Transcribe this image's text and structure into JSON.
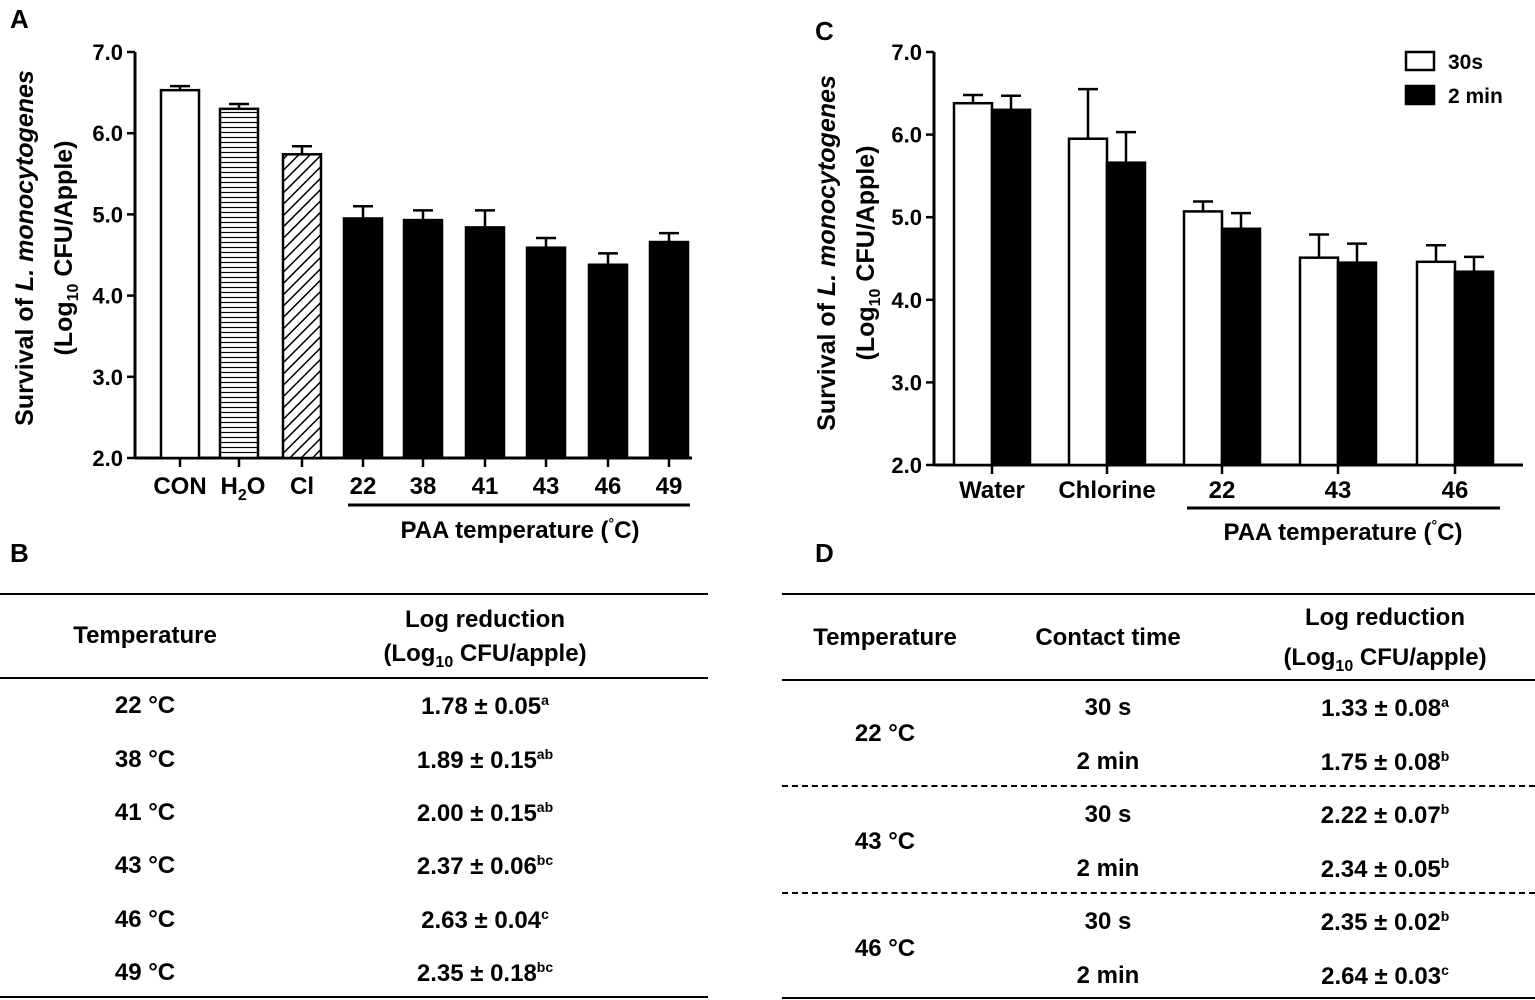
{
  "panel_labels": {
    "a": "A",
    "b": "B",
    "c": "C",
    "d": "D"
  },
  "chart_data": [
    {
      "type": "bar",
      "panel": "A",
      "ylabel_line1_pre": "Survival of ",
      "ylabel_line1_italic": "L. monocytogenes",
      "ylabel_line2_pre": "(Log",
      "ylabel_line2_sub": "10",
      "ylabel_line2_post": " CFU/Apple)",
      "ylim": [
        2.0,
        7.0
      ],
      "yticks": [
        "2.0",
        "3.0",
        "4.0",
        "5.0",
        "6.0",
        "7.0"
      ],
      "categories": [
        "CON",
        "H2O",
        "Cl",
        "22",
        "38",
        "41",
        "43",
        "46",
        "49"
      ],
      "category_display": {
        "h2o_pre": "H",
        "h2o_sub": "2",
        "h2o_post": "O"
      },
      "values": [
        6.53,
        6.3,
        5.74,
        4.95,
        4.93,
        4.84,
        4.59,
        4.38,
        4.66
      ],
      "errors": [
        0.05,
        0.06,
        0.1,
        0.15,
        0.12,
        0.21,
        0.12,
        0.14,
        0.11
      ],
      "fills": [
        "white",
        "hstripe",
        "diag",
        "black",
        "black",
        "black",
        "black",
        "black",
        "black"
      ],
      "group_label_pre": "PAA temperature (",
      "group_label_deg": "°",
      "group_label_post": "C)"
    },
    {
      "type": "bar",
      "panel": "C",
      "ylabel_line1_pre": "Survival of ",
      "ylabel_line1_italic": "L. monocytogenes",
      "ylabel_line2_pre": "(Log",
      "ylabel_line2_sub": "10",
      "ylabel_line2_post": " CFU/Apple)",
      "ylim": [
        2.0,
        7.0
      ],
      "yticks": [
        "2.0",
        "3.0",
        "4.0",
        "5.0",
        "6.0",
        "7.0"
      ],
      "categories": [
        "Water",
        "Chlorine",
        "22",
        "43",
        "46"
      ],
      "series": [
        {
          "name": "30s",
          "color": "#ffffff",
          "values": [
            6.38,
            5.95,
            5.07,
            4.51,
            4.46
          ],
          "errors": [
            0.1,
            0.6,
            0.12,
            0.28,
            0.2
          ]
        },
        {
          "name": "2 min",
          "color": "#000000",
          "values": [
            6.3,
            5.66,
            4.86,
            4.45,
            4.34
          ],
          "errors": [
            0.17,
            0.37,
            0.19,
            0.23,
            0.18
          ]
        }
      ],
      "group_label_pre": "PAA temperature (",
      "group_label_deg": "°",
      "group_label_post": "C)"
    }
  ],
  "table_b": {
    "header_temp": "Temperature",
    "header_log_line1": "Log reduction",
    "header_log_line2_pre": "(Log",
    "header_log_line2_sub": "10",
    "header_log_line2_post": " CFU/apple)",
    "rows": [
      {
        "temp": "22 °C",
        "value": "1.78 ± 0.05",
        "sup": "a"
      },
      {
        "temp": "38 °C",
        "value": "1.89 ± 0.15",
        "sup": "ab"
      },
      {
        "temp": "41 °C",
        "value": "2.00 ± 0.15",
        "sup": "ab"
      },
      {
        "temp": "43 °C",
        "value": "2.37 ± 0.06",
        "sup": "bc"
      },
      {
        "temp": "46 °C",
        "value": "2.63 ± 0.04",
        "sup": "c"
      },
      {
        "temp": "49 °C",
        "value": "2.35 ± 0.18",
        "sup": "bc"
      }
    ]
  },
  "table_d": {
    "header_temp": "Temperature",
    "header_time": "Contact time",
    "header_log_line1": "Log reduction",
    "header_log_line2_pre": "(Log",
    "header_log_line2_sub": "10",
    "header_log_line2_post": " CFU/apple)",
    "groups": [
      {
        "temp": "22 °C",
        "rows": [
          {
            "time": "30 s",
            "value": "1.33 ± 0.08",
            "sup": "a"
          },
          {
            "time": "2 min",
            "value": "1.75 ± 0.08",
            "sup": "b"
          }
        ]
      },
      {
        "temp": "43 °C",
        "rows": [
          {
            "time": "30 s",
            "value": "2.22 ± 0.07",
            "sup": "b"
          },
          {
            "time": "2 min",
            "value": "2.34 ± 0.05",
            "sup": "b"
          }
        ]
      },
      {
        "temp": "46 °C",
        "rows": [
          {
            "time": "30 s",
            "value": "2.35 ± 0.02",
            "sup": "b"
          },
          {
            "time": "2 min",
            "value": "2.64 ± 0.03",
            "sup": "c"
          }
        ]
      }
    ]
  }
}
